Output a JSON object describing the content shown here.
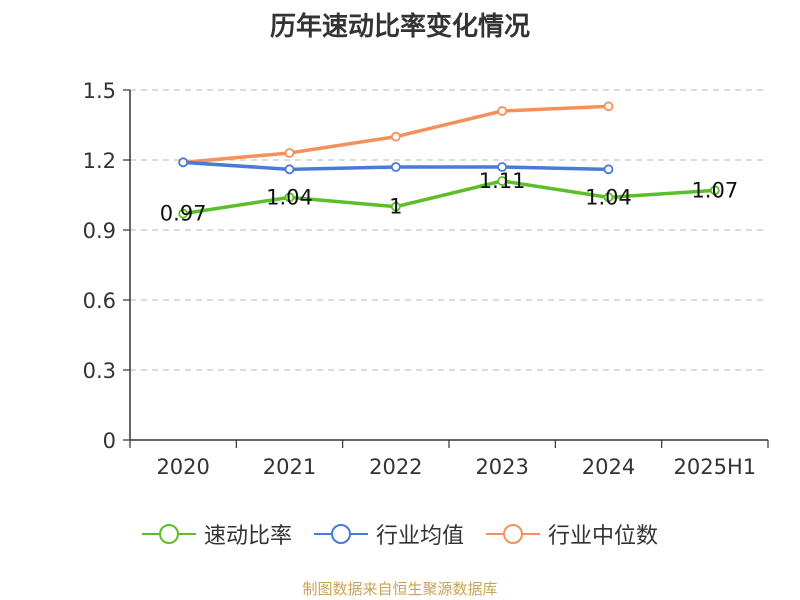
{
  "chart_data": {
    "type": "line",
    "title": "历年速动比率变化情况",
    "categories": [
      "2020",
      "2021",
      "2022",
      "2023",
      "2024",
      "2025H1"
    ],
    "ylim": [
      0,
      1.5
    ],
    "yticks": [
      "0",
      "0.3",
      "0.6",
      "0.9",
      "1.2",
      "1.5"
    ],
    "grid": true,
    "legend_position": "bottom",
    "series": [
      {
        "name": "速动比率",
        "color": "#5cbf2a",
        "values": [
          0.97,
          1.04,
          1.0,
          1.11,
          1.04,
          1.07
        ],
        "labels": [
          "0.97",
          "1.04",
          "1",
          "1.11",
          "1.04",
          "1.07"
        ]
      },
      {
        "name": "行业均值",
        "color": "#4a7ad8",
        "values": [
          1.19,
          1.16,
          1.17,
          1.17,
          1.16,
          null
        ]
      },
      {
        "name": "行业中位数",
        "color": "#f5905a",
        "values": [
          1.19,
          1.23,
          1.3,
          1.41,
          1.43,
          null
        ]
      }
    ]
  },
  "source_text": "制图数据来自恒生聚源数据库"
}
